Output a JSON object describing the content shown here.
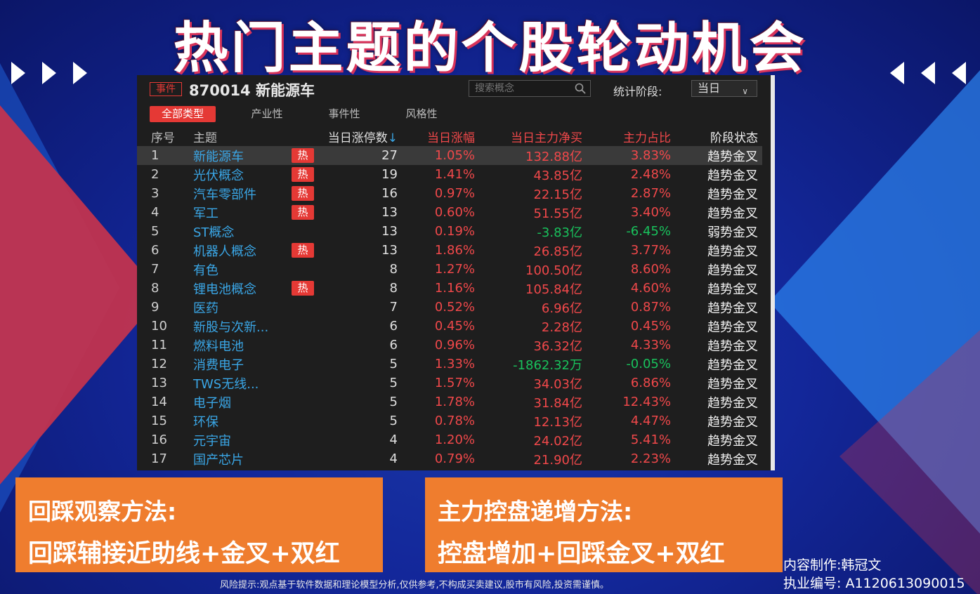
{
  "title": "热门主题的个股轮动机会",
  "panel": {
    "tag": "事件",
    "code_name": "870014 新能源车",
    "search_placeholder": "搜索概念",
    "period_label": "统计阶段:",
    "period_value": "当日",
    "tabs": [
      "全部类型",
      "产业性",
      "事件性",
      "风格性"
    ],
    "active_tab": "全部类型",
    "columns": [
      "序号",
      "主题",
      "当日涨停数",
      "当日涨幅",
      "当日主力净买",
      "主力占比",
      "阶段状态"
    ],
    "hot_label": "热",
    "rows": [
      {
        "no": "1",
        "name": "新能源车",
        "hot": true,
        "count": "27",
        "chg": "1.05%",
        "flow": "132.88亿",
        "ratio": "3.83%",
        "stage": "趋势金叉"
      },
      {
        "no": "2",
        "name": "光伏概念",
        "hot": true,
        "count": "19",
        "chg": "1.41%",
        "flow": "43.85亿",
        "ratio": "2.48%",
        "stage": "趋势金叉"
      },
      {
        "no": "3",
        "name": "汽车零部件",
        "hot": true,
        "count": "16",
        "chg": "0.97%",
        "flow": "22.15亿",
        "ratio": "2.87%",
        "stage": "趋势金叉"
      },
      {
        "no": "4",
        "name": "军工",
        "hot": true,
        "count": "13",
        "chg": "0.60%",
        "flow": "51.55亿",
        "ratio": "3.40%",
        "stage": "趋势金叉"
      },
      {
        "no": "5",
        "name": "ST概念",
        "hot": false,
        "count": "13",
        "chg": "0.19%",
        "flow": "-3.83亿",
        "ratio": "-6.45%",
        "stage": "弱势金叉"
      },
      {
        "no": "6",
        "name": "机器人概念",
        "hot": true,
        "count": "13",
        "chg": "1.86%",
        "flow": "26.85亿",
        "ratio": "3.77%",
        "stage": "趋势金叉"
      },
      {
        "no": "7",
        "name": "有色",
        "hot": false,
        "count": "8",
        "chg": "1.27%",
        "flow": "100.50亿",
        "ratio": "8.60%",
        "stage": "趋势金叉"
      },
      {
        "no": "8",
        "name": "锂电池概念",
        "hot": true,
        "count": "8",
        "chg": "1.16%",
        "flow": "105.84亿",
        "ratio": "4.60%",
        "stage": "趋势金叉"
      },
      {
        "no": "9",
        "name": "医药",
        "hot": false,
        "count": "7",
        "chg": "0.52%",
        "flow": "6.96亿",
        "ratio": "0.87%",
        "stage": "趋势金叉"
      },
      {
        "no": "10",
        "name": "新股与次新...",
        "hot": false,
        "count": "6",
        "chg": "0.45%",
        "flow": "2.28亿",
        "ratio": "0.45%",
        "stage": "趋势金叉"
      },
      {
        "no": "11",
        "name": "燃料电池",
        "hot": false,
        "count": "6",
        "chg": "0.96%",
        "flow": "36.32亿",
        "ratio": "4.33%",
        "stage": "趋势金叉"
      },
      {
        "no": "12",
        "name": "消费电子",
        "hot": false,
        "count": "5",
        "chg": "1.33%",
        "flow": "-1862.32万",
        "ratio": "-0.05%",
        "stage": "趋势金叉"
      },
      {
        "no": "13",
        "name": "TWS无线...",
        "hot": false,
        "count": "5",
        "chg": "1.57%",
        "flow": "34.03亿",
        "ratio": "6.86%",
        "stage": "趋势金叉"
      },
      {
        "no": "14",
        "name": "电子烟",
        "hot": false,
        "count": "5",
        "chg": "1.78%",
        "flow": "31.84亿",
        "ratio": "12.43%",
        "stage": "趋势金叉"
      },
      {
        "no": "15",
        "name": "环保",
        "hot": false,
        "count": "5",
        "chg": "0.78%",
        "flow": "12.13亿",
        "ratio": "4.47%",
        "stage": "趋势金叉"
      },
      {
        "no": "16",
        "name": "元宇宙",
        "hot": false,
        "count": "4",
        "chg": "1.20%",
        "flow": "24.02亿",
        "ratio": "5.41%",
        "stage": "趋势金叉"
      },
      {
        "no": "17",
        "name": "国产芯片",
        "hot": false,
        "count": "4",
        "chg": "0.79%",
        "flow": "21.90亿",
        "ratio": "2.23%",
        "stage": "趋势金叉"
      }
    ]
  },
  "box_left": {
    "line1": "回踩观察方法:",
    "line2": "回踩辅接近助线+金叉+双红"
  },
  "box_right": {
    "line1": "主力控盘递增方法:",
    "line2": "控盘增加+回踩金叉+双红"
  },
  "credit": {
    "author": "内容制作:韩冠文",
    "license": "执业编号: A1120613090015"
  },
  "risk_notice": "风险提示:观点基于软件数据和理论模型分析,仅供参考,不构成买卖建议,股市有风险,投资需谨慎。",
  "colors": {
    "up": "#f0484a",
    "down": "#19c15c",
    "accent": "#e53935",
    "link": "#3aa6e6",
    "orange": "#ef7d2e"
  }
}
